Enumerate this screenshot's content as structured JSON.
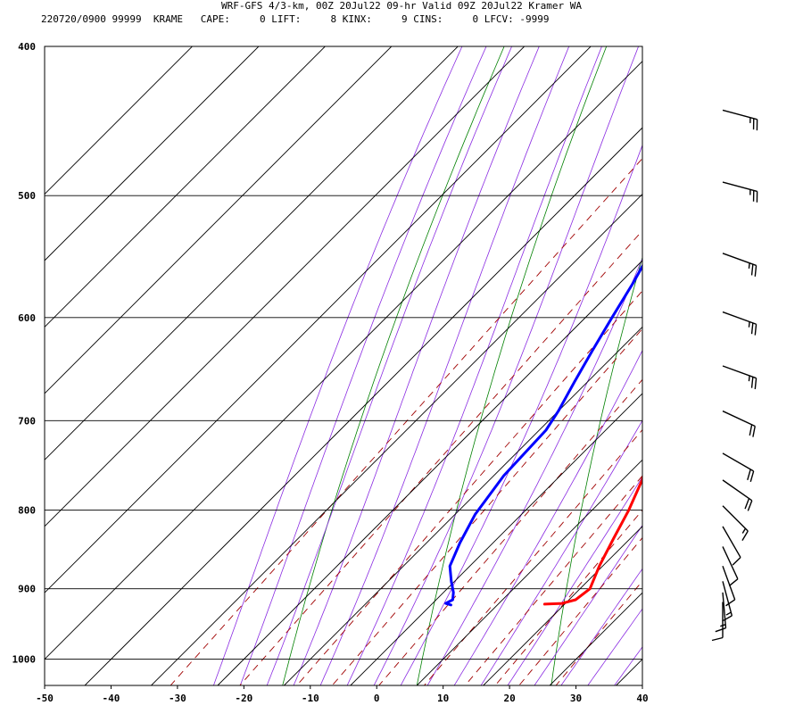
{
  "header": {
    "line1": "WRF-GFS 4/3-km, 00Z 20Jul22 09-hr Valid 09Z 20Jul22 Kramer WA",
    "line2": "220720/0900 99999  KRAME   CAPE:     0 LIFT:     8 KINX:     9 CINS:     0 LFCV: -9999"
  },
  "chart_data": {
    "type": "skew-t",
    "title": "WRF-GFS 4/3-km, 00Z 20Jul22 09-hr Valid 09Z 20Jul22 Kramer WA",
    "xlabel": "",
    "ylabel": "",
    "x_ticks": [
      -50,
      -40,
      -30,
      -20,
      -10,
      0,
      10,
      20,
      30,
      40
    ],
    "y_ticks": [
      400,
      500,
      600,
      700,
      800,
      900,
      1000
    ],
    "xlim": [
      -50,
      40
    ],
    "ylim": [
      1040,
      400
    ],
    "y_scale": "log-pressure",
    "grid": true,
    "series": [
      {
        "name": "",
        "color": "#ff0000",
        "points": [
          [
            -17.5,
            440
          ],
          [
            -13,
            470
          ],
          [
            -10,
            500
          ],
          [
            -6,
            540
          ],
          [
            -2,
            580
          ],
          [
            0.5,
            610
          ],
          [
            3,
            640
          ],
          [
            5,
            670
          ],
          [
            7,
            700
          ],
          [
            10,
            735
          ],
          [
            13,
            765
          ],
          [
            15.5,
            800
          ],
          [
            17.5,
            835
          ],
          [
            19.5,
            870
          ],
          [
            21.5,
            900
          ],
          [
            21,
            915
          ],
          [
            19.5,
            920
          ],
          [
            17,
            921
          ]
        ]
      },
      {
        "name": "",
        "color": "#0000ff",
        "points": [
          [
            -42,
            440
          ],
          [
            -36,
            465
          ],
          [
            -28,
            495
          ],
          [
            -24,
            520
          ],
          [
            -20,
            545
          ],
          [
            -18,
            570
          ],
          [
            -16,
            600
          ],
          [
            -14,
            630
          ],
          [
            -12,
            660
          ],
          [
            -10,
            690
          ],
          [
            -9,
            710
          ],
          [
            -8.5,
            760
          ],
          [
            -7,
            805
          ],
          [
            -5,
            840
          ],
          [
            -3,
            870
          ],
          [
            -0.5,
            890
          ],
          [
            1.5,
            905
          ],
          [
            2.5,
            915
          ],
          [
            2,
            920
          ],
          [
            3,
            922
          ]
        ]
      }
    ],
    "wind_barbs": [
      {
        "p": 440,
        "dir": 285,
        "speed": 25
      },
      {
        "p": 490,
        "dir": 285,
        "speed": 25
      },
      {
        "p": 545,
        "dir": 290,
        "speed": 25
      },
      {
        "p": 595,
        "dir": 290,
        "speed": 25
      },
      {
        "p": 645,
        "dir": 290,
        "speed": 25
      },
      {
        "p": 690,
        "dir": 295,
        "speed": 20
      },
      {
        "p": 735,
        "dir": 300,
        "speed": 20
      },
      {
        "p": 765,
        "dir": 305,
        "speed": 20
      },
      {
        "p": 795,
        "dir": 315,
        "speed": 15
      },
      {
        "p": 820,
        "dir": 330,
        "speed": 10
      },
      {
        "p": 845,
        "dir": 335,
        "speed": 10
      },
      {
        "p": 870,
        "dir": 340,
        "speed": 10
      },
      {
        "p": 890,
        "dir": 345,
        "speed": 15
      },
      {
        "p": 905,
        "dir": 355,
        "speed": 15
      },
      {
        "p": 918,
        "dir": 0,
        "speed": 10
      }
    ]
  }
}
